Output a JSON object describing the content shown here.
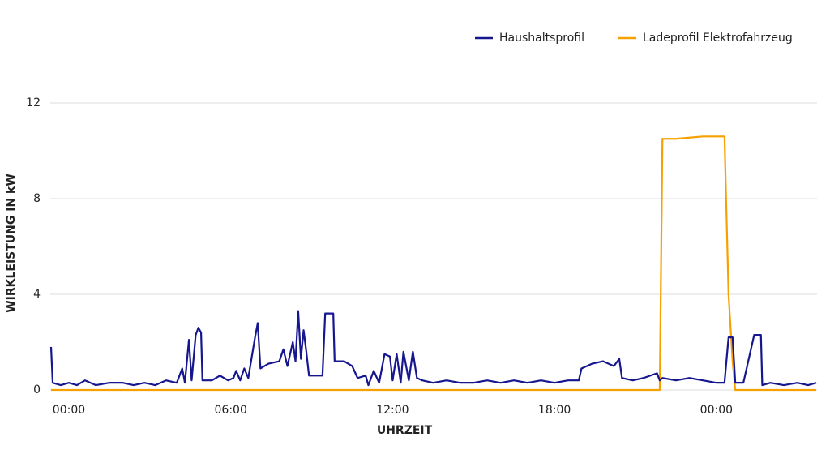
{
  "chart_data": {
    "type": "line",
    "y_label": "WIRKLEISTUNG IN kW",
    "x_label": "UHRZEIT",
    "legend": "top-right",
    "grid": true,
    "xlim": [
      -0.66,
      27.7
    ],
    "xticks": [
      {
        "value": 0,
        "label": "00:00"
      },
      {
        "value": 6,
        "label": "06:00"
      },
      {
        "value": 12,
        "label": "12:00"
      },
      {
        "value": 18,
        "label": "18:00"
      },
      {
        "value": 24,
        "label": "00:00"
      }
    ],
    "ylim": [
      0,
      12
    ],
    "yticks": [
      0,
      4,
      8,
      12
    ],
    "x": [
      -0.66,
      -0.6,
      -0.3,
      0,
      0.3,
      0.6,
      1,
      1.5,
      2,
      2.4,
      2.8,
      3.2,
      3.6,
      4,
      4.2,
      4.3,
      4.45,
      4.55,
      4.7,
      4.8,
      4.9,
      4.95,
      5.3,
      5.6,
      5.9,
      6.1,
      6.2,
      6.35,
      6.5,
      6.65,
      6.9,
      7,
      7.1,
      7.4,
      7.8,
      7.95,
      8.1,
      8.3,
      8.4,
      8.5,
      8.6,
      8.7,
      8.8,
      8.9,
      9.2,
      9.4,
      9.5,
      9.8,
      9.85,
      10.2,
      10.5,
      10.7,
      11,
      11.1,
      11.3,
      11.5,
      11.7,
      11.9,
      12,
      12.15,
      12.3,
      12.4,
      12.6,
      12.75,
      12.9,
      13.1,
      13.5,
      14,
      14.5,
      15,
      15.5,
      16,
      16.5,
      17,
      17.5,
      18,
      18.5,
      18.9,
      19,
      19.4,
      19.8,
      20.2,
      20.4,
      20.5,
      20.9,
      21.3,
      21.8,
      21.9,
      22,
      22.5,
      23,
      23.5,
      24,
      24.3,
      24.45,
      24.6,
      24.7,
      25,
      25.4,
      25.65,
      25.7,
      26,
      26.5,
      27,
      27.4,
      27.7
    ],
    "series": [
      {
        "name": "Haushaltsprofil",
        "color": "#16168f",
        "values": [
          1.8,
          0.3,
          0.2,
          0.3,
          0.2,
          0.4,
          0.2,
          0.3,
          0.3,
          0.2,
          0.3,
          0.2,
          0.4,
          0.3,
          0.9,
          0.3,
          2.1,
          0.4,
          2.3,
          2.6,
          2.4,
          0.4,
          0.4,
          0.6,
          0.4,
          0.5,
          0.8,
          0.4,
          0.9,
          0.5,
          2.2,
          2.8,
          0.9,
          1.1,
          1.2,
          1.7,
          1.0,
          2.0,
          1.2,
          3.3,
          1.3,
          2.5,
          1.6,
          0.6,
          0.6,
          0.6,
          3.2,
          3.2,
          1.2,
          1.2,
          1.0,
          0.5,
          0.6,
          0.2,
          0.8,
          0.3,
          1.5,
          1.4,
          0.4,
          1.5,
          0.3,
          1.6,
          0.4,
          1.6,
          0.5,
          0.4,
          0.3,
          0.4,
          0.3,
          0.3,
          0.4,
          0.3,
          0.4,
          0.3,
          0.4,
          0.3,
          0.4,
          0.4,
          0.9,
          1.1,
          1.2,
          1.0,
          1.3,
          0.5,
          0.4,
          0.5,
          0.7,
          0.4,
          0.5,
          0.4,
          0.5,
          0.4,
          0.3,
          0.3,
          2.2,
          2.2,
          0.3,
          0.3,
          2.3,
          2.3,
          0.2,
          0.3,
          0.2,
          0.3,
          0.2,
          0.3
        ]
      },
      {
        "name": "Ladeprofil Elektrofahrzeug",
        "color": "#f7a100",
        "values": [
          0,
          0,
          0,
          0,
          0,
          0,
          0,
          0,
          0,
          0,
          0,
          0,
          0,
          0,
          0,
          0,
          0,
          0,
          0,
          0,
          0,
          0,
          0,
          0,
          0,
          0,
          0,
          0,
          0,
          0,
          0,
          0,
          0,
          0,
          0,
          0,
          0,
          0,
          0,
          0,
          0,
          0,
          0,
          0,
          0,
          0,
          0,
          0,
          0,
          0,
          0,
          0,
          0,
          0,
          0,
          0,
          0,
          0,
          0,
          0,
          0,
          0,
          0,
          0,
          0,
          0,
          0,
          0,
          0,
          0,
          0,
          0,
          0,
          0,
          0,
          0,
          0,
          0,
          0,
          0,
          0,
          0,
          0,
          0,
          0,
          0,
          0,
          0,
          10.5,
          10.5,
          10.55,
          10.6,
          10.6,
          10.6,
          4,
          1.2,
          0,
          0,
          0,
          0,
          0,
          0,
          0,
          0,
          0,
          0
        ]
      }
    ]
  }
}
